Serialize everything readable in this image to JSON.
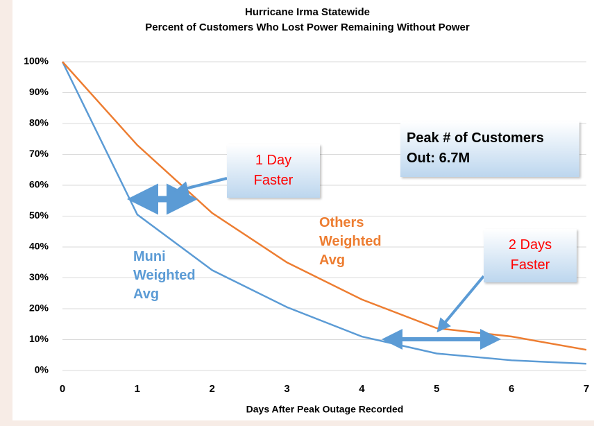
{
  "chart_data": {
    "type": "line",
    "title": "Hurricane Irma Statewide",
    "subtitle": "Percent of Customers Who Lost Power Remaining Without Power",
    "x_label": "Days After Peak Outage Recorded",
    "x": [
      0,
      1,
      2,
      3,
      4,
      5,
      6,
      7
    ],
    "series": [
      {
        "name": "Muni Weighted Avg",
        "color": "#5b9bd5",
        "values": [
          100,
          50.5,
          32.5,
          20.5,
          11,
          5.5,
          3.3,
          2.2
        ]
      },
      {
        "name": "Others Weighted Avg",
        "color": "#ed7d31",
        "values": [
          100,
          73,
          51,
          35,
          23,
          13.7,
          11,
          6.7
        ]
      }
    ],
    "xlim": [
      0,
      7
    ],
    "xticks": [
      0,
      1,
      2,
      3,
      4,
      5,
      6,
      7
    ],
    "ylim": [
      0,
      100
    ],
    "yticks": [
      {
        "value": 0,
        "label": "0%"
      },
      {
        "value": 10,
        "label": "10%"
      },
      {
        "value": 20,
        "label": "20%"
      },
      {
        "value": 30,
        "label": "30%"
      },
      {
        "value": 40,
        "label": "40%"
      },
      {
        "value": 50,
        "label": "50%"
      },
      {
        "value": 60,
        "label": "60%"
      },
      {
        "value": 70,
        "label": "70%"
      },
      {
        "value": 80,
        "label": "80%"
      },
      {
        "value": 90,
        "label": "90%"
      },
      {
        "value": 100,
        "label": "100%"
      }
    ],
    "grid": true,
    "annotations": [
      {
        "lines": [
          "1 Day",
          "Faster"
        ]
      },
      {
        "lines": [
          "2 Days",
          "Faster"
        ]
      },
      {
        "lines": [
          "Peak # of Customers",
          "Out: 6.7M"
        ]
      }
    ]
  }
}
